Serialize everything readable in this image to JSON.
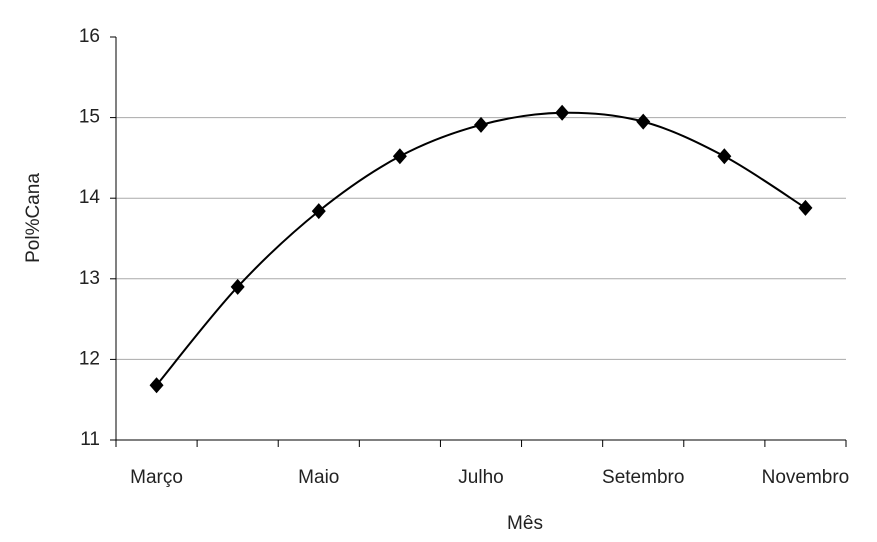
{
  "chart_data": {
    "type": "line",
    "x_label": "Mês",
    "y_label": "Pol%Cana",
    "categories": [
      "Março",
      null,
      "Maio",
      null,
      "Julho",
      null,
      "Setembro",
      null,
      "Novembro"
    ],
    "series": [
      {
        "name": "Pol%Cana",
        "color": "#000000",
        "values": [
          11.68,
          12.9,
          13.84,
          14.52,
          14.91,
          15.06,
          14.95,
          14.52,
          13.88
        ]
      }
    ],
    "ylim": [
      11,
      16
    ],
    "yticks": [
      11,
      12,
      13,
      14,
      15,
      16
    ],
    "grid": true
  }
}
